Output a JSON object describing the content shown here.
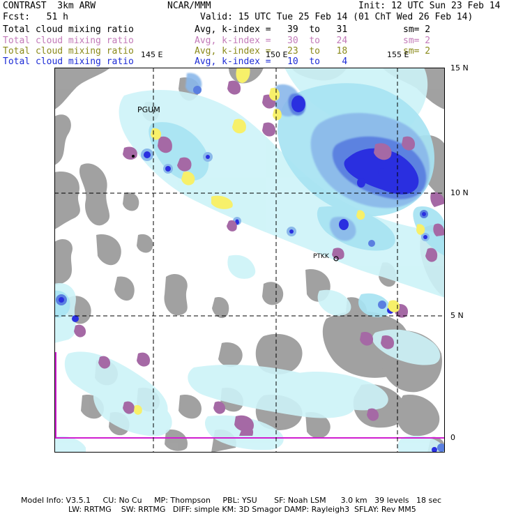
{
  "header": {
    "left1": "CONTRAST  3km ARW",
    "center1": "NCAR/MMM",
    "right1": "Init: 12 UTC Sun 23 Feb 14",
    "left2": "Fcst:   51 h",
    "right2": "Valid: 15 UTC Tue 25 Feb 14 (01 ChT Wed 26 Feb 14)"
  },
  "legend": [
    {
      "field": "Total cloud mixing ratio",
      "index": "Avg, k-index =   39  to   31",
      "sm": "sm= 2",
      "color": "#000000"
    },
    {
      "field": "Total cloud mixing ratio",
      "index": "Avg, k-index =   30  to   24",
      "sm": "sm= 2",
      "color": "#c27ab8"
    },
    {
      "field": "Total cloud mixing ratio",
      "index": "Avg, k-index =   23  to   18",
      "sm": "sm= 2",
      "color": "#8a8a1a"
    },
    {
      "field": "Total cloud mixing ratio",
      "index": "Avg, k-index =   10  to    4",
      "sm": "",
      "color": "#1c2bd6"
    }
  ],
  "map": {
    "lon_labels": [
      "145 E",
      "150 E",
      "155 E"
    ],
    "lat_labels": [
      "15 N",
      "10 N",
      "5 N",
      "0"
    ],
    "stations": [
      "PGUM",
      "PTKK"
    ],
    "colors": {
      "gray": "#9a9a9a",
      "cyan_light": "#cdf3f8",
      "cyan": "#a7e3f2",
      "blue_light": "#8ab8ea",
      "blue_mid": "#5a7fe0",
      "blue_deep": "#2a2fe0",
      "purple": "#a569a5",
      "yellow": "#f7f06a",
      "magenta": "#d01ed0"
    }
  },
  "footer": {
    "line1": "Model Info: V3.5.1     CU: No Cu     MP: Thompson     PBL: YSU       SF: Noah LSM      3.0 km   39 levels   18 sec",
    "line2": "LW: RRTMG    SW: RRTMG   DIFF: simple KM: 3D Smagor DAMP: Rayleigh3  SFLAY: Rev MM5"
  }
}
